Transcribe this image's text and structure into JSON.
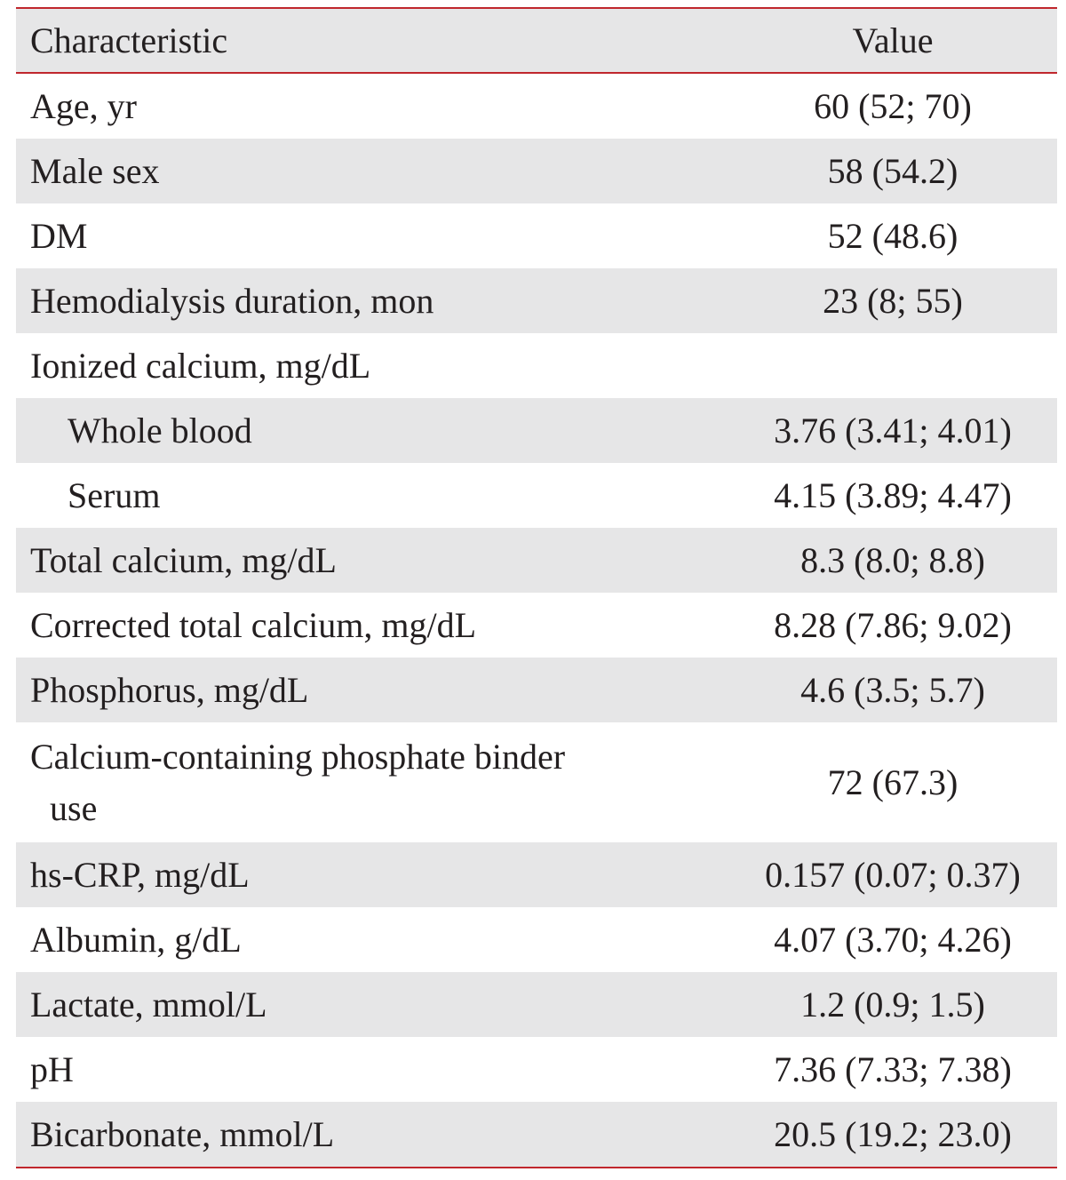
{
  "table": {
    "columns": [
      "Characteristic",
      "Value"
    ],
    "rows": [
      [
        "Age, yr",
        "60 (52; 70)"
      ],
      [
        "Male sex",
        "58 (54.2)"
      ],
      [
        "DM",
        "52 (48.6)"
      ],
      [
        "Hemodialysis duration, mon",
        "23 (8; 55)"
      ],
      {
        "label": "Ionized calcium, mg/dL",
        "subrows": [
          [
            "Whole blood",
            "3.76 (3.41; 4.01)"
          ],
          [
            "Serum",
            "4.15 (3.89; 4.47)"
          ]
        ]
      },
      [
        "Total calcium, mg/dL",
        "8.3 (8.0; 8.8)"
      ],
      [
        "Corrected total calcium, mg/dL",
        "8.28 (7.86; 9.02)"
      ],
      [
        "Phosphorus, mg/dL",
        "4.6 (3.5; 5.7)"
      ],
      [
        "Calcium-containing phosphate binder use",
        "72 (67.3)"
      ],
      [
        "hs-CRP, mg/dL",
        "0.157 (0.07; 0.37)"
      ],
      [
        "Albumin, g/dL",
        "4.07 (3.70; 4.26)"
      ],
      [
        "Lactate, mmol/L",
        "1.2 (0.9; 1.5)"
      ],
      [
        "pH",
        "7.36 (7.33; 7.38)"
      ],
      [
        "Bicarbonate, mmol/L",
        "20.5 (19.2; 23.0)"
      ]
    ]
  }
}
